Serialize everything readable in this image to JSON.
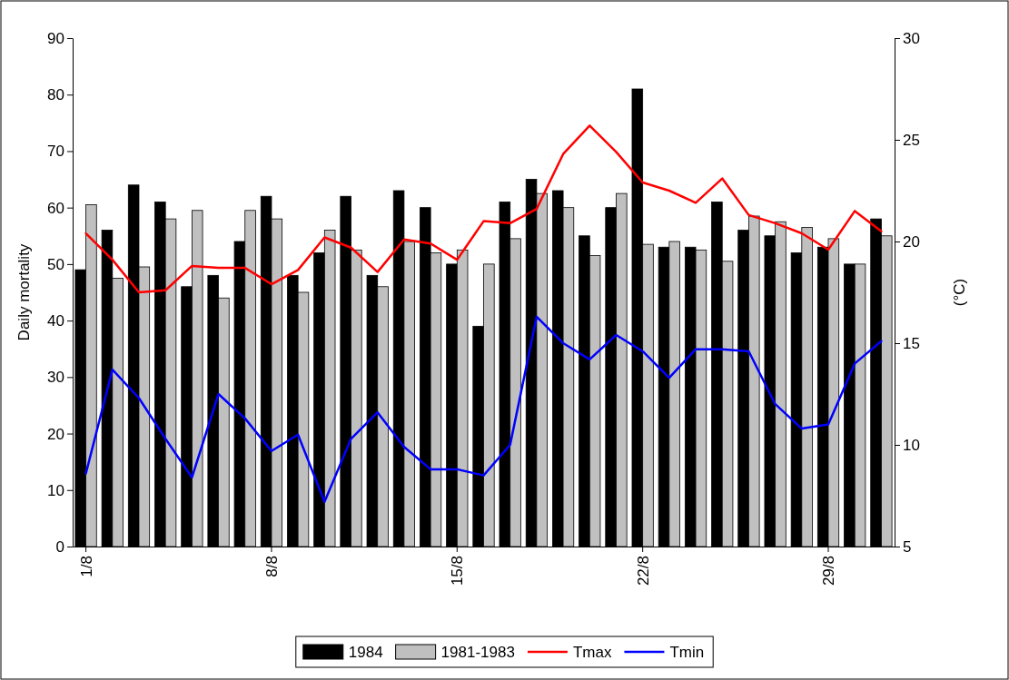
{
  "chart_data": {
    "type": "bar",
    "ylabel": "Daily mortality",
    "y2label": "(°C)",
    "categories": [
      "1/8",
      null,
      null,
      null,
      null,
      null,
      null,
      "8/8",
      null,
      null,
      null,
      null,
      null,
      null,
      "15/8",
      null,
      null,
      null,
      null,
      null,
      null,
      "22/8",
      null,
      null,
      null,
      null,
      null,
      null,
      "29/8",
      null,
      null
    ],
    "series": [
      {
        "name": "1984",
        "color": "#000000",
        "values": [
          49,
          56,
          64,
          61,
          46,
          48,
          54,
          62,
          48,
          52,
          62,
          48,
          63,
          60,
          50,
          39,
          61,
          65,
          63,
          55,
          60,
          81,
          53,
          53,
          61,
          56,
          55,
          52,
          53,
          50,
          58
        ]
      },
      {
        "name": "1981-1983",
        "color": "#c0c0c0",
        "values": [
          60.5,
          47.5,
          49.5,
          58,
          59.5,
          44,
          59.5,
          58,
          45,
          56,
          52.5,
          46,
          54,
          52,
          52.5,
          50,
          54.5,
          62.5,
          60,
          51.5,
          62.5,
          53.5,
          54,
          52.5,
          50.5,
          58.5,
          57.5,
          56.5,
          54.5,
          50,
          55
        ]
      },
      {
        "name": "Tmax",
        "type": "line",
        "axis": "y2",
        "color": "#ff0000",
        "values": [
          20.4,
          19.1,
          17.5,
          17.6,
          18.8,
          18.7,
          18.7,
          17.9,
          18.6,
          20.2,
          19.7,
          18.5,
          20.1,
          19.9,
          19.1,
          21.0,
          20.9,
          21.6,
          24.3,
          25.7,
          24.4,
          22.9,
          22.5,
          21.9,
          23.1,
          21.3,
          20.9,
          20.4,
          19.6,
          21.5,
          20.5
        ]
      },
      {
        "name": "Tmin",
        "type": "line",
        "axis": "y2",
        "color": "#0000ff",
        "values": [
          8.6,
          13.7,
          12.3,
          10.3,
          8.4,
          12.5,
          11.3,
          9.7,
          10.5,
          7.2,
          10.3,
          11.6,
          9.9,
          8.8,
          8.8,
          8.5,
          10.0,
          16.3,
          15.0,
          14.2,
          15.4,
          14.6,
          13.3,
          14.7,
          14.7,
          14.6,
          12.0,
          10.8,
          11.0,
          14.0,
          15.1
        ]
      }
    ],
    "ylim": [
      0,
      90
    ],
    "yticks": [
      0,
      10,
      20,
      30,
      40,
      50,
      60,
      70,
      80,
      90
    ],
    "y2lim": [
      5,
      30
    ],
    "y2ticks": [
      5,
      10,
      15,
      20,
      25,
      30
    ],
    "grid": false,
    "legend": "bottom"
  }
}
